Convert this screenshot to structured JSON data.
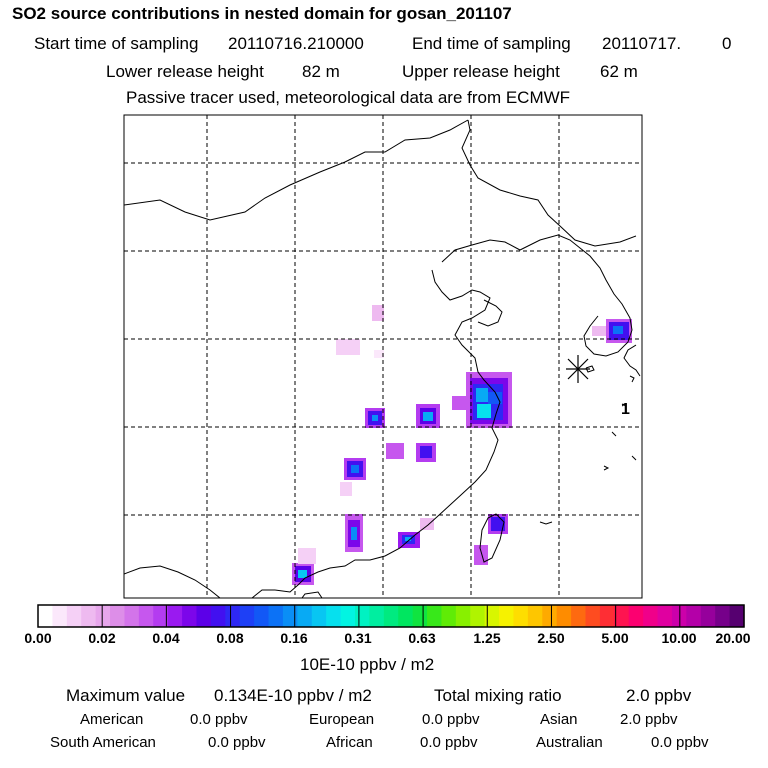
{
  "header": {
    "title": "SO2 source contributions in nested domain for gosan_201107",
    "start_label": "Start time of sampling",
    "start_value": "20110716.210000",
    "end_label": "End time of sampling",
    "end_value": "20110717.",
    "end_suffix": "0",
    "lower_label": "Lower release height",
    "lower_value": "82 m",
    "upper_label": "Upper release height",
    "upper_value": "62 m",
    "note": "Passive tracer used, meteorological data are from ECMWF"
  },
  "map": {
    "site_marker_label": "1",
    "colors": {
      "land_outline": "#000000",
      "grid": "#000000",
      "marker": "#000000"
    }
  },
  "colorbar": {
    "labels": [
      "0.00",
      "0.02",
      "0.04",
      "0.08",
      "0.16",
      "0.31",
      "0.63",
      "1.25",
      "2.50",
      "5.00",
      "10.00",
      "20.00"
    ],
    "colors": [
      "#ffffff",
      "#fbe8fb",
      "#f5d0f6",
      "#eebaf0",
      "#e7a6ec",
      "#dd8ee8",
      "#d374ea",
      "#c657ee",
      "#b43cf0",
      "#9a1af0",
      "#7c06ea",
      "#5c00e8",
      "#4210f0",
      "#2e28f4",
      "#1e40f6",
      "#1258f6",
      "#0c72f6",
      "#0a8ef6",
      "#08aaf4",
      "#08c6f2",
      "#06e0ee",
      "#02f4e2",
      "#00f2c2",
      "#00eea0",
      "#00ea80",
      "#00e660",
      "#10e440",
      "#38e81a",
      "#60ec06",
      "#88f000",
      "#b0f400",
      "#d8f600",
      "#f6f200",
      "#fede00",
      "#fec600",
      "#feaa00",
      "#fe8c00",
      "#fe6a10",
      "#fe4c20",
      "#fe2e34",
      "#fe1450",
      "#fc0070",
      "#f0008a",
      "#e000a0",
      "#cc00aa",
      "#b400a8",
      "#96009c",
      "#76008a",
      "#560070"
    ],
    "unit": "10E-10 ppbv / m2"
  },
  "stats": {
    "max_label": "Maximum value",
    "max_value": "0.134E-10 ppbv / m2",
    "total_label": "Total mixing ratio",
    "total_value": "2.0 ppbv",
    "regions": [
      {
        "name": "American",
        "value": "0.0 ppbv"
      },
      {
        "name": "European",
        "value": "0.0 ppbv"
      },
      {
        "name": "Asian",
        "value": "2.0 ppbv"
      },
      {
        "name": "South American",
        "value": "0.0 ppbv"
      },
      {
        "name": "African",
        "value": "0.0 ppbv"
      },
      {
        "name": "Australian",
        "value": "0.0 ppbv"
      }
    ]
  }
}
